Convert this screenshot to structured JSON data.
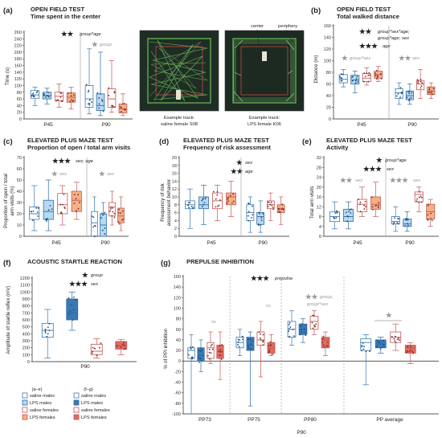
{
  "colors": {
    "saline_males_fill": "#ffffff",
    "saline_males_stroke": "#3a78b4",
    "lps_males_fill_a": "#b7d9f2",
    "lps_males_fill_g": "#3a78b4",
    "lps_males_stroke": "#2d6aa6",
    "saline_females_fill": "#ffffff",
    "saline_females_stroke": "#c65454",
    "lps_females_fill_a": "#f4b183",
    "lps_females_fill_g": "#e06b5e",
    "lps_females_stroke": "#c65454",
    "grey_text": "#9a9a9a"
  },
  "panels": {
    "a": {
      "letter": "(a)",
      "title1": "OPEN FIELD TEST",
      "title2": "Time spent in the center",
      "ylabel": "Time (s)",
      "group_left": "P45",
      "group_right": "P90",
      "stars_top": "★★",
      "annot_top": "group*age",
      "stars_p90": "★",
      "annot_p90": "group",
      "photo_left_caption1": "Example track:",
      "photo_left_caption2": "saline female S08",
      "photo_right_caption1": "Example track:",
      "photo_right_caption2": "LPS female K06",
      "callout_center": "center",
      "callout_periphery": "periphery"
    },
    "b": {
      "letter": "(b)",
      "title1": "OPEN FIELD TEST",
      "title2": "Total walked distance",
      "ylabel": "Distance (m)",
      "group_left": "P45",
      "group_right": "P90",
      "stars_1": "★★",
      "annot_1a": "group*sex*age;",
      "annot_1b": "group*age; sex",
      "stars_2": "★★★",
      "annot_2": "age",
      "stars_p45": "★",
      "annot_p45": "group*sex",
      "stars_p90": "★★",
      "annot_p90": "sex"
    },
    "c": {
      "letter": "(c)",
      "title1": "ELEVATED PLUS MAZE TEST",
      "title2": "Proportion of open / total arm visits",
      "ylabel1": "Proportion of open / total",
      "ylabel2": "arm visits (%)",
      "group_left": "P45",
      "group_right": "P90",
      "stars_top": "★★★",
      "annot_top": "sex; age",
      "stars_p45": "★",
      "annot_p45": "sex",
      "stars_p90": "★",
      "annot_p90": "sex"
    },
    "d": {
      "letter": "(d)",
      "title1": "ELEVATED PLUS MAZE TEST",
      "title2": "Frequency of risk assessment",
      "ylabel1": "Frequency of risk",
      "ylabel2": "assessment behavior",
      "group_left": "P45",
      "group_right": "P90",
      "stars_1": "★",
      "annot_1": "sex",
      "stars_2": "★★",
      "annot_2": "age"
    },
    "e": {
      "letter": "(e)",
      "title1": "ELEVATED PLUS MAZE TEST",
      "title2": "Activity",
      "ylabel": "Total arm visits",
      "group_left": "P45",
      "group_right": "P90",
      "stars_1": "★",
      "annot_1": "group*age",
      "stars_2": "★★★",
      "annot_2": "sex",
      "stars_p45": "★★",
      "annot_p45": "sex",
      "stars_p90": "★★★",
      "annot_p90": "sex"
    },
    "f": {
      "letter": "(f)",
      "title1": "ACOUSTIC STARTLE REACTION",
      "ylabel": "Amplitude of startle reflex (mV)",
      "group_label": "P90",
      "stars_1": "★",
      "annot_1": "group",
      "stars_2": "★★★",
      "annot_2": "sex"
    },
    "g": {
      "letter": "(g)",
      "title1": "PREPULSE INHIBITION",
      "ylabel": "% of PPI inhibition",
      "stars_top": "★★★",
      "annot_top": "prepulse",
      "ns_1": "ns",
      "ns_2": "ns",
      "stars_pp80": "★★",
      "annot_pp80a": "group;",
      "annot_pp80b": "group*sex",
      "stars_avg": "★",
      "x_pp73": "PP73",
      "x_pp75": "PP75",
      "x_pp80": "PP80",
      "x_avg": "PP average",
      "group_label": "P90"
    }
  },
  "legend": {
    "head_left": "(a–e)",
    "head_right": "(f–g)",
    "items": [
      "saline males",
      "LPS males",
      "saline females",
      "LPS females"
    ]
  },
  "chart_data": [
    {
      "panel": "a",
      "type": "box",
      "title": "OPEN FIELD TEST Time spent in the center",
      "ylabel": "Time (s)",
      "ylim": [
        0,
        260
      ],
      "yticks": [
        0,
        20,
        40,
        60,
        80,
        100,
        120,
        140,
        160,
        180,
        200,
        220,
        240,
        260
      ],
      "categories": [
        "P45",
        "P90"
      ],
      "series": [
        {
          "name": "saline males",
          "stats": [
            [
              40,
              62,
              72,
              85,
              95
            ],
            [
              15,
              35,
              60,
              100,
              210
            ]
          ]
        },
        {
          "name": "LPS males",
          "stats": [
            [
              45,
              60,
              70,
              80,
              92
            ],
            [
              10,
              25,
              40,
              75,
              200
            ]
          ]
        },
        {
          "name": "saline females",
          "stats": [
            [
              35,
              55,
              68,
              80,
              105
            ],
            [
              20,
              35,
              60,
              90,
              175
            ]
          ]
        },
        {
          "name": "LPS females",
          "stats": [
            [
              30,
              50,
              65,
              78,
              95
            ],
            [
              10,
              18,
              30,
              45,
              75
            ]
          ]
        }
      ]
    },
    {
      "panel": "b",
      "type": "box",
      "title": "OPEN FIELD TEST Total walked distance",
      "ylabel": "Distance (m)",
      "ylim": [
        0,
        160
      ],
      "yticks": [
        0,
        20,
        40,
        60,
        80,
        100,
        120,
        140,
        160
      ],
      "categories": [
        "P45",
        "P90"
      ],
      "series": [
        {
          "name": "saline males",
          "stats": [
            [
              55,
              62,
              68,
              76,
              85
            ],
            [
              25,
              35,
              45,
              52,
              62
            ]
          ]
        },
        {
          "name": "LPS males",
          "stats": [
            [
              45,
              60,
              67,
              75,
              82
            ],
            [
              25,
              33,
              40,
              48,
              60
            ]
          ]
        },
        {
          "name": "saline females",
          "stats": [
            [
              58,
              64,
              70,
              78,
              88
            ],
            [
              35,
              50,
              60,
              66,
              85
            ]
          ]
        },
        {
          "name": "LPS females",
          "stats": [
            [
              64,
              70,
              76,
              82,
              90
            ],
            [
              35,
              42,
              48,
              55,
              62
            ]
          ]
        }
      ]
    },
    {
      "panel": "c",
      "type": "box",
      "title": "ELEVATED PLUS MAZE TEST Proportion of open / total arm visits",
      "ylabel": "Proportion of open / total arm visits (%)",
      "ylim": [
        0,
        70
      ],
      "yticks": [
        0,
        10,
        20,
        30,
        40,
        50,
        60,
        70
      ],
      "categories": [
        "P45",
        "P90"
      ],
      "series": [
        {
          "name": "saline males",
          "stats": [
            [
              5,
              15,
              20,
              26,
              45
            ],
            [
              0,
              0,
              12,
              22,
              35
            ]
          ]
        },
        {
          "name": "LPS males",
          "stats": [
            [
              5,
              15,
              22,
              32,
              50
            ],
            [
              0,
              0,
              10,
              20,
              30
            ]
          ]
        },
        {
          "name": "saline females",
          "stats": [
            [
              10,
              20,
              28,
              38,
              45
            ],
            [
              10,
              18,
              26,
              30,
              40
            ]
          ]
        },
        {
          "name": "LPS females",
          "stats": [
            [
              15,
              22,
              32,
              40,
              48
            ],
            [
              5,
              12,
              18,
              25,
              35
            ]
          ]
        }
      ]
    },
    {
      "panel": "d",
      "type": "box",
      "title": "ELEVATED PLUS MAZE TEST Frequency of risk assessment",
      "ylabel": "Frequency of risk assessment behavior",
      "ylim": [
        0,
        20
      ],
      "yticks": [
        0,
        2,
        4,
        6,
        8,
        10,
        12,
        14,
        16,
        18,
        20
      ],
      "categories": [
        "P45",
        "P90"
      ],
      "series": [
        {
          "name": "saline males",
          "stats": [
            [
              2,
              7,
              8,
              9,
              12
            ],
            [
              1,
              4,
              6,
              8,
              10
            ]
          ]
        },
        {
          "name": "LPS males",
          "stats": [
            [
              3,
              7,
              8,
              10,
              13
            ],
            [
              1,
              3,
              5,
              6,
              9
            ]
          ]
        },
        {
          "name": "saline females",
          "stats": [
            [
              4,
              7,
              9,
              11,
              13
            ],
            [
              4,
              7,
              8,
              9,
              11
            ]
          ]
        },
        {
          "name": "LPS females",
          "stats": [
            [
              5,
              8,
              10,
              11,
              14
            ],
            [
              3,
              6,
              7,
              8,
              10
            ]
          ]
        }
      ]
    },
    {
      "panel": "e",
      "type": "box",
      "title": "ELEVATED PLUS MAZE TEST Activity",
      "ylabel": "Total arm visits",
      "ylim": [
        0,
        32
      ],
      "yticks": [
        0,
        4,
        8,
        12,
        16,
        20,
        24,
        28,
        32
      ],
      "categories": [
        "P45",
        "P90"
      ],
      "series": [
        {
          "name": "saline males",
          "stats": [
            [
              3,
              6,
              8,
              10,
              14
            ],
            [
              2,
              5,
              6,
              8,
              12
            ]
          ]
        },
        {
          "name": "LPS males",
          "stats": [
            [
              3,
              6,
              8,
              11,
              14
            ],
            [
              2,
              4,
              5,
              7,
              10
            ]
          ]
        },
        {
          "name": "saline females",
          "stats": [
            [
              8,
              10,
              13,
              15,
              20
            ],
            [
              10,
              14,
              17,
              18,
              20
            ]
          ]
        },
        {
          "name": "LPS females",
          "stats": [
            [
              8,
              11,
              13,
              16,
              22
            ],
            [
              4,
              7,
              10,
              13,
              15
            ]
          ]
        }
      ]
    },
    {
      "panel": "f",
      "type": "box",
      "title": "ACOUSTIC STARTLE REACTION",
      "ylabel": "Amplitude of startle reflex (mV)",
      "ylim": [
        0,
        1200
      ],
      "yticks": [
        0,
        100,
        200,
        300,
        400,
        500,
        600,
        700,
        800,
        900,
        1000,
        1100,
        1200
      ],
      "categories": [
        "P90"
      ],
      "series": [
        {
          "name": "saline males",
          "stats": [
            [
              50,
              350,
              450,
              550,
              750
            ]
          ]
        },
        {
          "name": "LPS males",
          "stats": [
            [
              450,
              600,
              700,
              900,
              1000
            ]
          ]
        },
        {
          "name": "saline females",
          "stats": [
            [
              50,
              100,
              150,
              250,
              330
            ]
          ]
        },
        {
          "name": "LPS females",
          "stats": [
            [
              100,
              180,
              230,
              290,
              320
            ]
          ]
        }
      ]
    },
    {
      "panel": "g",
      "type": "box",
      "title": "PREPULSE INHIBITION",
      "ylabel": "% of PPI inhibition",
      "ylim": [
        -100,
        160
      ],
      "yticks": [
        -100,
        -80,
        -60,
        -40,
        -20,
        0,
        20,
        40,
        60,
        80,
        100,
        120,
        140,
        160
      ],
      "categories": [
        "PP73",
        "PP75",
        "PP80",
        "PP average"
      ],
      "series": [
        {
          "name": "saline males",
          "stats": [
            [
              -100,
              5,
              20,
              25,
              50
            ],
            [
              10,
              25,
              35,
              45,
              60
            ],
            [
              30,
              45,
              60,
              75,
              95
            ],
            [
              -45,
              20,
              35,
              42,
              50
            ]
          ]
        },
        {
          "name": "LPS males",
          "stats": [
            [
              -20,
              0,
              10,
              25,
              40
            ],
            [
              -85,
              20,
              30,
              45,
              55
            ],
            [
              35,
              50,
              60,
              70,
              80
            ],
            [
              15,
              25,
              32,
              40,
              45
            ]
          ]
        },
        {
          "name": "saline females",
          "stats": [
            [
              -5,
              5,
              25,
              35,
              55
            ],
            [
              -30,
              30,
              40,
              55,
              75
            ],
            [
              50,
              60,
              75,
              85,
              95
            ],
            [
              20,
              35,
              45,
              55,
              70
            ]
          ]
        },
        {
          "name": "LPS females",
          "stats": [
            [
              -35,
              5,
              10,
              30,
              55
            ],
            [
              10,
              15,
              25,
              35,
              50
            ],
            [
              10,
              25,
              40,
              45,
              55
            ],
            [
              -5,
              15,
              25,
              30,
              35
            ]
          ]
        }
      ]
    }
  ]
}
